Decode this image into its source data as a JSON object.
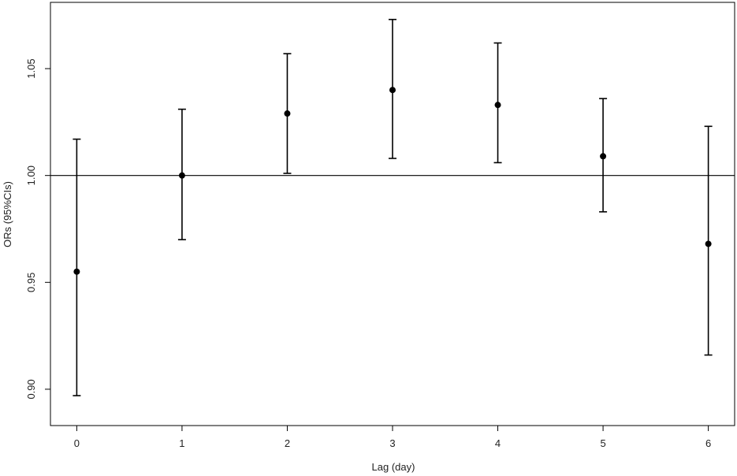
{
  "chart_data": {
    "type": "scatter",
    "title": "",
    "xlabel": "Lag (day)",
    "ylabel": "ORs (95%CIs)",
    "x": [
      0,
      1,
      2,
      3,
      4,
      5,
      6
    ],
    "x_tick_labels": [
      "0",
      "1",
      "2",
      "3",
      "4",
      "5",
      "6"
    ],
    "y_ticks": [
      0.9,
      0.95,
      1.0,
      1.05
    ],
    "y_tick_labels": [
      "0.90",
      "0.95",
      "1.00",
      "1.05"
    ],
    "xlim": [
      -0.25,
      6.25
    ],
    "ylim": [
      0.883,
      1.081
    ],
    "reference_line": 1.0,
    "grid": false,
    "series": [
      {
        "estimate": [
          0.955,
          1.0,
          1.029,
          1.04,
          1.033,
          1.009,
          0.968
        ],
        "lower": [
          0.897,
          0.97,
          1.001,
          1.008,
          1.006,
          0.983,
          0.916
        ],
        "upper": [
          1.017,
          1.031,
          1.057,
          1.073,
          1.062,
          1.036,
          1.023
        ]
      }
    ],
    "colors": {
      "marks": "#000000",
      "axis": "#000000"
    }
  }
}
